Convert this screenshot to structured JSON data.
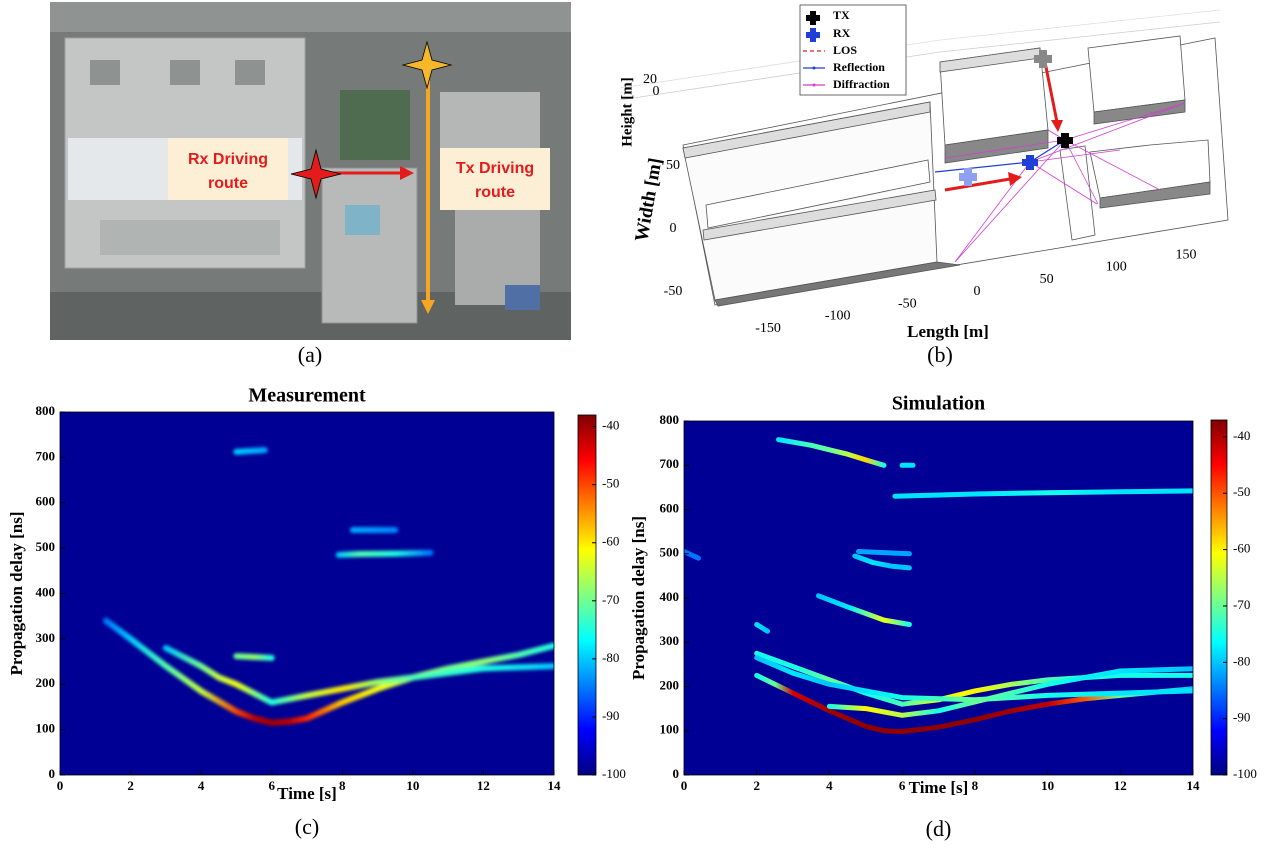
{
  "panels": {
    "a": {
      "caption": "(a)",
      "rx_label": [
        "Rx Driving",
        "route"
      ],
      "tx_label": [
        "Tx Driving",
        "route"
      ]
    },
    "b": {
      "caption": "(b)",
      "legend": [
        "TX",
        "RX",
        "LOS",
        "Reflection",
        "Diffraction"
      ],
      "xlabel": "Length [m]",
      "ylabel": "Width [m]",
      "zlabel": "Height [m]",
      "xticks": [
        -150,
        -100,
        -50,
        0,
        50,
        100,
        150
      ],
      "yticks": [
        50,
        0,
        -50
      ],
      "zticks": [
        20,
        0
      ]
    }
  },
  "chart_data": [
    {
      "type": "heatmap",
      "title": "Measurement",
      "caption": "(c)",
      "xlabel": "Time [s]",
      "ylabel": "Propagation delay [ns]",
      "xlim": [
        0,
        14
      ],
      "xticks": [
        0,
        2,
        4,
        6,
        8,
        10,
        12,
        14
      ],
      "ylim": [
        0,
        800
      ],
      "yticks": [
        0,
        100,
        200,
        300,
        400,
        500,
        600,
        700,
        800
      ],
      "clim": [
        -100,
        -38
      ],
      "cticks": [
        -40,
        -50,
        -60,
        -70,
        -80,
        -90,
        -100
      ],
      "traces": [
        {
          "x": [
            1.3,
            2,
            3,
            4,
            5,
            5.5,
            6,
            6.5,
            7,
            8,
            9,
            10,
            11,
            12,
            13,
            14
          ],
          "values": [
            340,
            300,
            240,
            185,
            140,
            125,
            115,
            118,
            125,
            160,
            190,
            215,
            235,
            250,
            265,
            285
          ],
          "power": [
            -85,
            -80,
            -72,
            -65,
            -50,
            -42,
            -40,
            -42,
            -48,
            -58,
            -62,
            -66,
            -70,
            -68,
            -72,
            -75
          ]
        },
        {
          "x": [
            3,
            4,
            4.5,
            5,
            6,
            7,
            8,
            9,
            10,
            12,
            14
          ],
          "values": [
            280,
            240,
            215,
            200,
            160,
            175,
            190,
            205,
            215,
            235,
            240
          ],
          "power": [
            -80,
            -70,
            -65,
            -62,
            -75,
            -65,
            -60,
            -68,
            -72,
            -75,
            -80
          ]
        },
        {
          "x": [
            5,
            5.5,
            6
          ],
          "values": [
            262,
            260,
            258
          ],
          "power": [
            -70,
            -68,
            -75
          ]
        },
        {
          "x": [
            5,
            5.8
          ],
          "values": [
            712,
            716
          ],
          "power": [
            -80,
            -82
          ]
        },
        {
          "x": [
            7.9,
            8.5,
            9.5,
            10.5
          ],
          "values": [
            485,
            487,
            488,
            490
          ],
          "power": [
            -80,
            -72,
            -75,
            -85
          ]
        },
        {
          "x": [
            8.3,
            9.5
          ],
          "values": [
            540,
            540
          ],
          "power": [
            -82,
            -84
          ]
        }
      ]
    },
    {
      "type": "heatmap",
      "title": "Simulation",
      "caption": "(d)",
      "xlabel": "Time [s]",
      "ylabel": "Propagation delay [ns]",
      "xlim": [
        0,
        14
      ],
      "xticks": [
        0,
        2,
        4,
        6,
        8,
        10,
        12,
        14
      ],
      "ylim": [
        0,
        800
      ],
      "yticks": [
        0,
        100,
        200,
        300,
        400,
        500,
        600,
        700,
        800
      ],
      "clim": [
        -100,
        -37
      ],
      "cticks": [
        -40,
        -50,
        -60,
        -70,
        -80,
        -90,
        -100
      ],
      "traces": [
        {
          "x": [
            2,
            2.5,
            3,
            4,
            5,
            5.5,
            6,
            7,
            8,
            9,
            10,
            11,
            12,
            14
          ],
          "values": [
            225,
            205,
            185,
            145,
            110,
            100,
            98,
            108,
            125,
            145,
            160,
            172,
            180,
            195
          ],
          "power": [
            -75,
            -70,
            -42,
            -39,
            -38,
            -38,
            -38,
            -38,
            -38,
            -39,
            -41,
            -50,
            -70,
            -80
          ]
        },
        {
          "x": [
            2,
            3,
            4,
            5,
            6,
            7,
            8,
            9,
            10,
            12,
            14
          ],
          "values": [
            275,
            245,
            215,
            185,
            160,
            170,
            190,
            205,
            215,
            225,
            225
          ],
          "power": [
            -75,
            -75,
            -70,
            -75,
            -72,
            -62,
            -60,
            -66,
            -72,
            -75,
            -75
          ]
        },
        {
          "x": [
            4,
            5,
            6,
            7,
            8,
            9,
            10,
            12,
            14
          ],
          "values": [
            155,
            150,
            135,
            145,
            165,
            185,
            205,
            235,
            240
          ],
          "power": [
            -75,
            -60,
            -65,
            -75,
            -70,
            -72,
            -75,
            -78,
            -80
          ]
        },
        {
          "x": [
            2,
            3,
            4,
            5,
            6,
            8,
            10,
            12,
            14
          ],
          "values": [
            265,
            230,
            205,
            190,
            175,
            170,
            180,
            185,
            190
          ],
          "power": [
            -80,
            -78,
            -80,
            -78,
            -75,
            -70,
            -75,
            -78,
            -78
          ]
        },
        {
          "x": [
            3.7,
            4.5,
            5,
            5.5,
            6.2
          ],
          "values": [
            405,
            380,
            365,
            350,
            340
          ],
          "power": [
            -80,
            -78,
            -70,
            -62,
            -75
          ]
        },
        {
          "x": [
            2.6,
            3.5,
            4,
            4.5,
            5,
            5.5
          ],
          "values": [
            758,
            745,
            735,
            725,
            712,
            700
          ],
          "power": [
            -78,
            -72,
            -70,
            -65,
            -58,
            -75
          ]
        },
        {
          "x": [
            4.7,
            5.2,
            5.7,
            6.2
          ],
          "values": [
            495,
            480,
            472,
            468
          ],
          "power": [
            -80,
            -78,
            -80,
            -80
          ]
        },
        {
          "x": [
            4.8,
            6.2
          ],
          "values": [
            505,
            500
          ],
          "power": [
            -82,
            -82
          ]
        },
        {
          "x": [
            5.8,
            8,
            10,
            12,
            14
          ],
          "values": [
            630,
            635,
            638,
            640,
            642
          ],
          "power": [
            -78,
            -78,
            -75,
            -78,
            -78
          ]
        },
        {
          "x": [
            6,
            6.3
          ],
          "values": [
            700,
            700
          ],
          "power": [
            -78,
            -78
          ]
        },
        {
          "x": [
            0,
            0.4
          ],
          "values": [
            505,
            490
          ],
          "power": [
            -85,
            -85
          ]
        },
        {
          "x": [
            2,
            2.3
          ],
          "values": [
            340,
            325
          ],
          "power": [
            -78,
            -80
          ]
        }
      ]
    }
  ]
}
